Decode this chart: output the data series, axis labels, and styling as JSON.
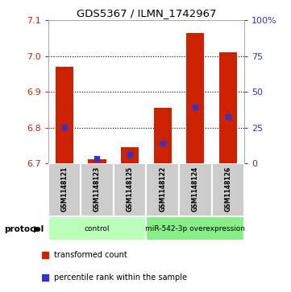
{
  "title": "GDS5367 / ILMN_1742967",
  "samples": [
    "GSM1148121",
    "GSM1148123",
    "GSM1148125",
    "GSM1148122",
    "GSM1148124",
    "GSM1148126"
  ],
  "groups": [
    "control",
    "control",
    "control",
    "miR-542-3p overexpression",
    "miR-542-3p overexpression",
    "miR-542-3p overexpression"
  ],
  "bar_bottoms": [
    6.7,
    6.7,
    6.7,
    6.7,
    6.7,
    6.7
  ],
  "bar_tops": [
    6.97,
    6.712,
    6.745,
    6.855,
    7.065,
    7.01
  ],
  "percentile_values": [
    6.802,
    6.713,
    6.725,
    6.757,
    6.858,
    6.83
  ],
  "ylim": [
    6.7,
    7.1
  ],
  "y_ticks_left": [
    6.7,
    6.8,
    6.9,
    7.0,
    7.1
  ],
  "y_ticks_right_vals": [
    0,
    25,
    50,
    75,
    100
  ],
  "y_ticks_right_labels": [
    "0",
    "25",
    "50",
    "75",
    "100%"
  ],
  "bar_color": "#cc2200",
  "blue_color": "#3333cc",
  "group_colors": {
    "control": "#bbffbb",
    "miR-542-3p overexpression": "#88ee88"
  },
  "group_label": "protocol",
  "legend_red": "transformed count",
  "legend_blue": "percentile rank within the sample",
  "bar_width": 0.55
}
